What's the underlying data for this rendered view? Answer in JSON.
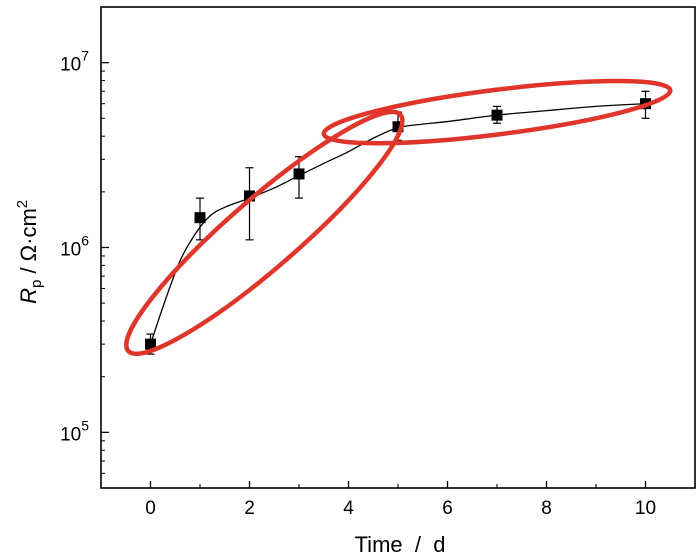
{
  "chart_data": {
    "type": "scatter",
    "title": "",
    "xlabel": "Time  /  d",
    "ylabel": {
      "main": "R",
      "sub": "p",
      "rest": " / Ω·cm",
      "sup": "2"
    },
    "xlim": [
      -1,
      11
    ],
    "ylim": [
      50000,
      20000000
    ],
    "yscale": "log",
    "grid": false,
    "xticks": [
      0,
      2,
      4,
      6,
      8,
      10
    ],
    "xtick_labels": [
      "0",
      "2",
      "4",
      "6",
      "8",
      "10"
    ],
    "yticks": [
      100000,
      1000000,
      10000000
    ],
    "ytick_labels": [
      {
        "base": "10",
        "exp": "5"
      },
      {
        "base": "10",
        "exp": "6"
      },
      {
        "base": "10",
        "exp": "7"
      }
    ],
    "series": [
      {
        "marker": "square",
        "color": "#000000",
        "points": [
          {
            "x": 0,
            "y": 300000,
            "err_low": 265000,
            "err_high": 340000
          },
          {
            "x": 1,
            "y": 1450000,
            "err_low": 1100000,
            "err_high": 1850000
          },
          {
            "x": 2,
            "y": 1900000,
            "err_low": 1100000,
            "err_high": 2700000
          },
          {
            "x": 3,
            "y": 2500000,
            "err_low": 1850000,
            "err_high": 3100000
          },
          {
            "x": 5,
            "y": 4500000,
            "err_low": 3800000,
            "err_high": 5400000
          },
          {
            "x": 7,
            "y": 5200000,
            "err_low": 4700000,
            "err_high": 5800000
          },
          {
            "x": 10,
            "y": 6000000,
            "err_low": 5000000,
            "err_high": 7000000
          }
        ]
      }
    ],
    "fit_curve": {
      "color": "#000000",
      "points": [
        [
          0.0,
          300000
        ],
        [
          0.3,
          520000
        ],
        [
          0.6,
          850000
        ],
        [
          0.9,
          1180000
        ],
        [
          1.2,
          1480000
        ],
        [
          1.5,
          1650000
        ],
        [
          2.0,
          1850000
        ],
        [
          2.5,
          2100000
        ],
        [
          3.0,
          2450000
        ],
        [
          3.5,
          2850000
        ],
        [
          4.0,
          3300000
        ],
        [
          4.5,
          3900000
        ],
        [
          5.0,
          4450000
        ],
        [
          5.5,
          4650000
        ],
        [
          6.0,
          4800000
        ],
        [
          7.0,
          5200000
        ],
        [
          8.0,
          5500000
        ],
        [
          9.0,
          5800000
        ],
        [
          10.0,
          6000000
        ]
      ]
    },
    "annotations": [
      {
        "shape": "ellipse",
        "color": "#e0352b",
        "center": [
          2.3,
          1200000
        ],
        "ends": [
          [
            -0.6,
            280000
          ],
          [
            4.9,
            5300000
          ]
        ],
        "half_width": 0.7
      },
      {
        "shape": "ellipse",
        "color": "#e0352b",
        "center": [
          7.0,
          5400000
        ],
        "ends": [
          [
            4.1,
            4000000
          ],
          [
            11.1,
            6900000
          ]
        ],
        "half_width": 0.45
      }
    ]
  }
}
